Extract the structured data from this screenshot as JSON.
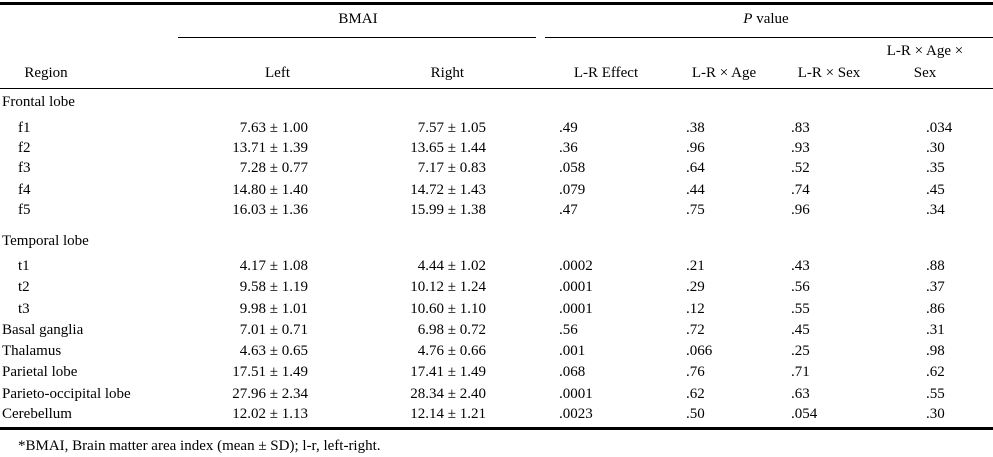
{
  "header": {
    "group_bmai": "BMAI",
    "group_p_italic": "P",
    "group_p_rest": "value",
    "col_region": "Region",
    "col_left": "Left",
    "col_right": "Right",
    "col_lr_effect": "L-R Effect",
    "col_lr_age": "L-R × Age",
    "col_lr_sex": "L-R × Sex",
    "col_lr_age_sex_line1": "L-R × Age ×",
    "col_lr_age_sex_line2": "Sex"
  },
  "rows": [
    {
      "label": "Frontal lobe",
      "indent": false,
      "section": true
    },
    {
      "label": "f1",
      "indent": true,
      "left": "7.63 ± 1.00",
      "right": "7.57 ± 1.05",
      "eff": ".49",
      "age": ".38",
      "sex": ".83",
      "agesex": ".034"
    },
    {
      "label": "f2",
      "indent": true,
      "left": "13.71 ± 1.39",
      "right": "13.65 ± 1.44",
      "eff": ".36",
      "age": ".96",
      "sex": ".93",
      "agesex": ".30"
    },
    {
      "label": "f3",
      "indent": true,
      "left": "7.28 ± 0.77",
      "right": "7.17 ± 0.83",
      "eff": ".058",
      "age": ".64",
      "sex": ".52",
      "agesex": ".35"
    },
    {
      "label": "f4",
      "indent": true,
      "left": "14.80 ± 1.40",
      "right": "14.72 ± 1.43",
      "eff": ".079",
      "age": ".44",
      "sex": ".74",
      "agesex": ".45"
    },
    {
      "label": "f5",
      "indent": true,
      "left": "16.03 ± 1.36",
      "right": "15.99 ± 1.38",
      "eff": ".47",
      "age": ".75",
      "sex": ".96",
      "agesex": ".34"
    },
    {
      "label": "Temporal lobe",
      "indent": false,
      "section": true
    },
    {
      "label": "t1",
      "indent": true,
      "left": "4.17 ± 1.08",
      "right": "4.44 ± 1.02",
      "eff": ".0002",
      "age": ".21",
      "sex": ".43",
      "agesex": ".88"
    },
    {
      "label": "t2",
      "indent": true,
      "left": "9.58 ± 1.19",
      "right": "10.12 ± 1.24",
      "eff": ".0001",
      "age": ".29",
      "sex": ".56",
      "agesex": ".37"
    },
    {
      "label": "t3",
      "indent": true,
      "left": "9.98 ± 1.01",
      "right": "10.60 ± 1.10",
      "eff": ".0001",
      "age": ".12",
      "sex": ".55",
      "agesex": ".86"
    },
    {
      "label": "Basal ganglia",
      "indent": false,
      "left": "7.01 ± 0.71",
      "right": "6.98 ± 0.72",
      "eff": ".56",
      "age": ".72",
      "sex": ".45",
      "agesex": ".31"
    },
    {
      "label": "Thalamus",
      "indent": false,
      "left": "4.63 ± 0.65",
      "right": "4.76 ± 0.66",
      "eff": ".001",
      "age": ".066",
      "sex": ".25",
      "agesex": ".98"
    },
    {
      "label": "Parietal lobe",
      "indent": false,
      "left": "17.51 ± 1.49",
      "right": "17.41 ± 1.49",
      "eff": ".068",
      "age": ".76",
      "sex": ".71",
      "agesex": ".62"
    },
    {
      "label": "Parieto-occipital lobe",
      "indent": false,
      "left": "27.96 ± 2.34",
      "right": "28.34 ± 2.40",
      "eff": ".0001",
      "age": ".62",
      "sex": ".63",
      "agesex": ".55"
    },
    {
      "label": "Cerebellum",
      "indent": false,
      "left": "12.02 ± 1.13",
      "right": "12.14 ± 1.21",
      "eff": ".0023",
      "age": ".50",
      "sex": ".054",
      "agesex": ".30"
    }
  ],
  "footnote": "*BMAI, Brain matter area index (mean ± SD); l-r, left-right."
}
